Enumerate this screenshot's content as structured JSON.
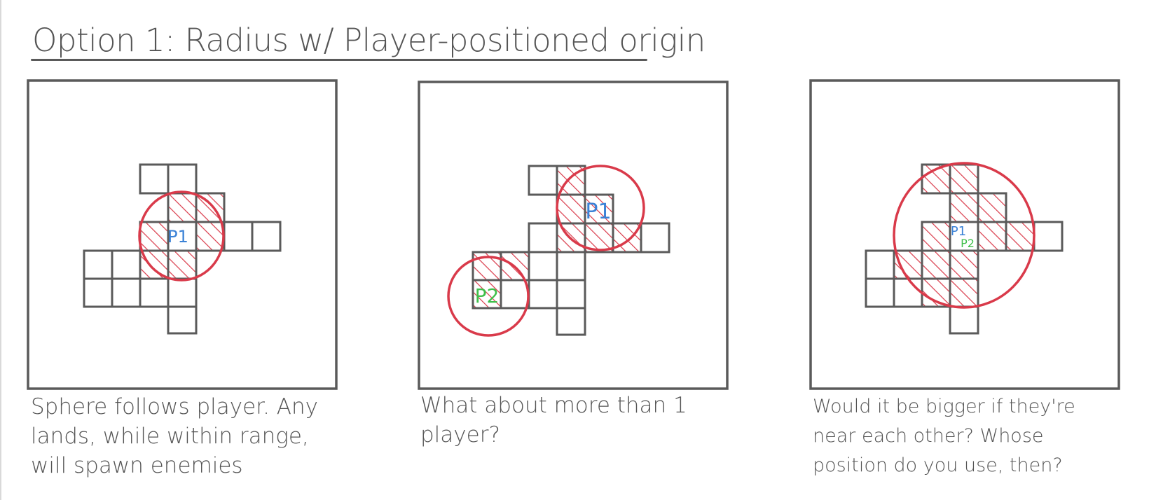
{
  "title": "Option 1: Radius w/ Player-positioned origin",
  "colors": {
    "ink": "#5a5a5a",
    "radius": "#d93a4a",
    "player1": "#3b82d6",
    "player2": "#3fbf4a",
    "background": "#ffffff"
  },
  "panels": [
    {
      "caption": "Sphere follows player. Any lands, while within range, will spawn enemies",
      "markers": [
        {
          "label": "P1",
          "color": "#3b82d6"
        }
      ]
    },
    {
      "caption": "What about more than 1 player?",
      "markers": [
        {
          "label": "P1",
          "color": "#3b82d6"
        },
        {
          "label": "P2",
          "color": "#3fbf4a"
        }
      ]
    },
    {
      "caption": "Would it be bigger if they're near each other? Whose position do you use, then?",
      "markers": [
        {
          "label": "P1",
          "color": "#3b82d6"
        },
        {
          "label": "P2",
          "color": "#3fbf4a"
        }
      ]
    }
  ]
}
